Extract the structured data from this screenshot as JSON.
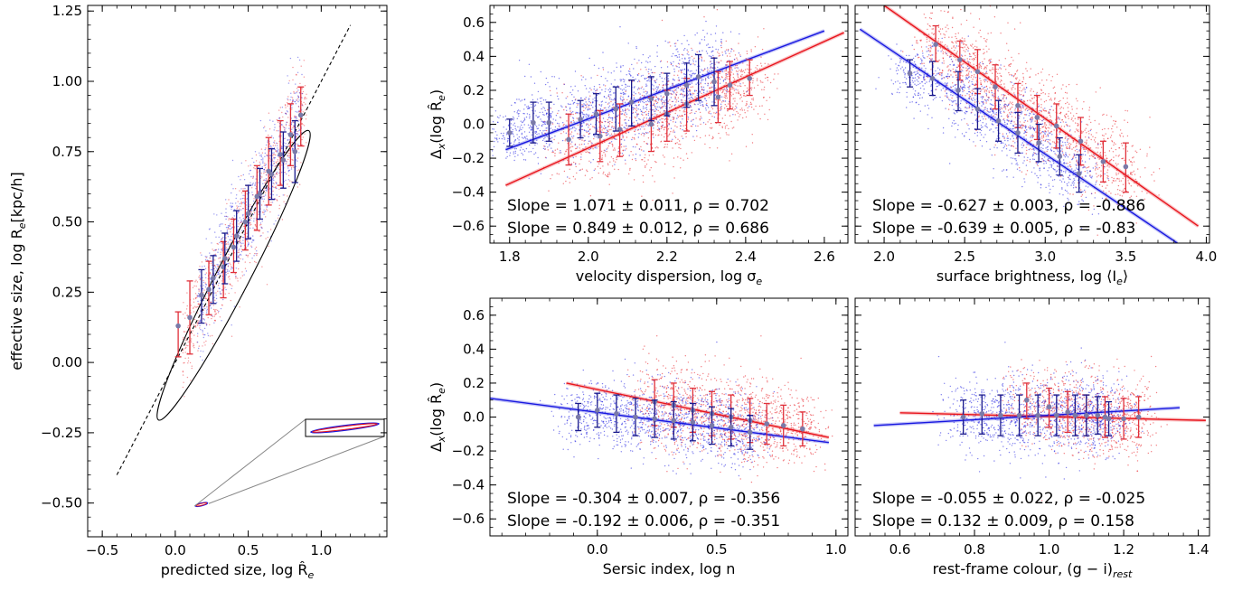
{
  "colors": {
    "red": "#e8141c",
    "blue": "#1818e0",
    "errbar_red": "#e0303a",
    "errbar_blue": "#1a1a8c",
    "marker": "#7a7aa8"
  },
  "chart_data": [
    {
      "id": "p0",
      "type": "scatter",
      "xlabel": "predicted size, log R̂",
      "xlabel_sub": "e",
      "ylabel": "effective size, log R",
      "ylabel_sub": "e",
      "ylabel_tail": "[kpc/h]",
      "xlim": [
        -0.6,
        1.45
      ],
      "ylim": [
        -0.62,
        1.27
      ],
      "xticks": [
        {
          "v": -0.5,
          "l": "−0.5"
        },
        {
          "v": 0,
          "l": "0.0"
        },
        {
          "v": 0.5,
          "l": "0.5"
        },
        {
          "v": 1,
          "l": "1.0"
        }
      ],
      "yticks": [
        {
          "v": -0.5,
          "l": "−0.50"
        },
        {
          "v": -0.25,
          "l": "−0.25"
        },
        {
          "v": 0,
          "l": "0.00"
        },
        {
          "v": 0.25,
          "l": "0.25"
        },
        {
          "v": 0.5,
          "l": "0.50"
        },
        {
          "v": 0.75,
          "l": "0.75"
        },
        {
          "v": 1,
          "l": "1.00"
        },
        {
          "v": 1.25,
          "l": "1.25"
        }
      ],
      "one_to_one": [
        [
          -0.4,
          -0.4
        ],
        [
          1.2,
          1.2
        ]
      ],
      "ellipse": {
        "center": [
          0.4,
          0.31
        ],
        "angle_deg": 38,
        "rx": 1.14,
        "ry": 0.14
      },
      "red_bins": [
        {
          "x": 0.02,
          "y": 0.13,
          "lo": 0.02,
          "hi": 0.18
        },
        {
          "x": 0.1,
          "y": 0.16,
          "lo": 0.03,
          "hi": 0.29
        },
        {
          "x": 0.23,
          "y": 0.26,
          "lo": 0.17,
          "hi": 0.36
        },
        {
          "x": 0.33,
          "y": 0.34,
          "lo": 0.23,
          "hi": 0.43
        },
        {
          "x": 0.4,
          "y": 0.41,
          "lo": 0.32,
          "hi": 0.51
        },
        {
          "x": 0.48,
          "y": 0.5,
          "lo": 0.4,
          "hi": 0.61
        },
        {
          "x": 0.56,
          "y": 0.59,
          "lo": 0.47,
          "hi": 0.7
        },
        {
          "x": 0.64,
          "y": 0.68,
          "lo": 0.56,
          "hi": 0.8
        },
        {
          "x": 0.72,
          "y": 0.74,
          "lo": 0.63,
          "hi": 0.86
        },
        {
          "x": 0.79,
          "y": 0.81,
          "lo": 0.7,
          "hi": 0.92
        },
        {
          "x": 0.86,
          "y": 0.88,
          "lo": 0.77,
          "hi": 0.98
        }
      ],
      "blue_bins": [
        {
          "x": 0.18,
          "y": 0.24,
          "lo": 0.14,
          "hi": 0.33
        },
        {
          "x": 0.26,
          "y": 0.3,
          "lo": 0.21,
          "hi": 0.38
        },
        {
          "x": 0.34,
          "y": 0.37,
          "lo": 0.28,
          "hi": 0.46
        },
        {
          "x": 0.42,
          "y": 0.45,
          "lo": 0.36,
          "hi": 0.54
        },
        {
          "x": 0.5,
          "y": 0.53,
          "lo": 0.44,
          "hi": 0.63
        },
        {
          "x": 0.58,
          "y": 0.6,
          "lo": 0.51,
          "hi": 0.69
        },
        {
          "x": 0.66,
          "y": 0.67,
          "lo": 0.58,
          "hi": 0.76
        },
        {
          "x": 0.74,
          "y": 0.72,
          "lo": 0.62,
          "hi": 0.82
        },
        {
          "x": 0.82,
          "y": 0.75,
          "lo": 0.64,
          "hi": 0.86
        }
      ]
    },
    {
      "id": "p1",
      "type": "scatter",
      "xlabel": "velocity dispersion, log σ",
      "xlabel_sub": "e",
      "ylabel": "Δ",
      "ylabel_sub": "x",
      "ylabel_tail": "(log R̂",
      "ylabel_tail_sub": "e",
      "ylabel_close": ")",
      "xlim": [
        1.75,
        2.66
      ],
      "ylim": [
        -0.7,
        0.7
      ],
      "xticks": [
        {
          "v": 1.8,
          "l": "1.8"
        },
        {
          "v": 2.0,
          "l": "2.0"
        },
        {
          "v": 2.2,
          "l": "2.2"
        },
        {
          "v": 2.4,
          "l": "2.4"
        },
        {
          "v": 2.6,
          "l": "2.6"
        }
      ],
      "yticks": [
        {
          "v": -0.6,
          "l": "−0.6"
        },
        {
          "v": -0.4,
          "l": "−0.4"
        },
        {
          "v": -0.2,
          "l": "−0.2"
        },
        {
          "v": 0,
          "l": "0.0"
        },
        {
          "v": 0.2,
          "l": "0.2"
        },
        {
          "v": 0.4,
          "l": "0.4"
        },
        {
          "v": 0.6,
          "l": "0.6"
        }
      ],
      "red_fit": [
        [
          1.79,
          -0.36
        ],
        [
          2.65,
          0.54
        ]
      ],
      "blue_fit": [
        [
          1.79,
          -0.15
        ],
        [
          2.6,
          0.55
        ]
      ],
      "red_bins": [
        {
          "x": 1.95,
          "y": -0.09,
          "lo": -0.24,
          "hi": 0.06
        },
        {
          "x": 2.03,
          "y": -0.07,
          "lo": -0.22,
          "hi": 0.08
        },
        {
          "x": 2.08,
          "y": -0.03,
          "lo": -0.19,
          "hi": 0.12
        },
        {
          "x": 2.16,
          "y": 0.0,
          "lo": -0.16,
          "hi": 0.16
        },
        {
          "x": 2.2,
          "y": 0.06,
          "lo": -0.1,
          "hi": 0.2
        },
        {
          "x": 2.25,
          "y": 0.12,
          "lo": -0.04,
          "hi": 0.27
        },
        {
          "x": 2.33,
          "y": 0.16,
          "lo": 0.01,
          "hi": 0.31
        },
        {
          "x": 2.36,
          "y": 0.23,
          "lo": 0.09,
          "hi": 0.37
        },
        {
          "x": 2.41,
          "y": 0.27,
          "lo": 0.17,
          "hi": 0.38
        }
      ],
      "blue_bins": [
        {
          "x": 1.8,
          "y": -0.05,
          "lo": -0.13,
          "hi": 0.03
        },
        {
          "x": 1.86,
          "y": 0.01,
          "lo": -0.11,
          "hi": 0.13
        },
        {
          "x": 1.9,
          "y": 0.01,
          "lo": -0.1,
          "hi": 0.13
        },
        {
          "x": 1.98,
          "y": 0.03,
          "lo": -0.08,
          "hi": 0.14
        },
        {
          "x": 2.02,
          "y": 0.06,
          "lo": -0.06,
          "hi": 0.18
        },
        {
          "x": 2.07,
          "y": 0.09,
          "lo": -0.04,
          "hi": 0.22
        },
        {
          "x": 2.11,
          "y": 0.13,
          "lo": -0.01,
          "hi": 0.26
        },
        {
          "x": 2.16,
          "y": 0.15,
          "lo": 0.02,
          "hi": 0.28
        },
        {
          "x": 2.2,
          "y": 0.18,
          "lo": 0.05,
          "hi": 0.3
        },
        {
          "x": 2.25,
          "y": 0.23,
          "lo": 0.1,
          "hi": 0.36
        },
        {
          "x": 2.28,
          "y": 0.28,
          "lo": 0.14,
          "hi": 0.41
        },
        {
          "x": 2.32,
          "y": 0.25,
          "lo": 0.11,
          "hi": 0.39
        }
      ],
      "red_text": "Slope = 1.071 ± 0.011, ρ = 0.702",
      "blue_text": "Slope = 0.849 ± 0.012, ρ = 0.686"
    },
    {
      "id": "p2",
      "type": "scatter",
      "xlabel": "surface brightness, log ⟨I",
      "xlabel_sub": "e",
      "xlabel_close": "⟩",
      "xlim": [
        1.82,
        4.02
      ],
      "ylim": [
        -0.7,
        0.7
      ],
      "xticks": [
        {
          "v": 2.0,
          "l": "2.0"
        },
        {
          "v": 2.5,
          "l": "2.5"
        },
        {
          "v": 3.0,
          "l": "3.0"
        },
        {
          "v": 3.5,
          "l": "3.5"
        },
        {
          "v": 4.0,
          "l": "4.0"
        }
      ],
      "yticks": [
        {
          "v": -0.6,
          "l": ""
        },
        {
          "v": -0.4,
          "l": ""
        },
        {
          "v": -0.2,
          "l": ""
        },
        {
          "v": 0,
          "l": ""
        },
        {
          "v": 0.2,
          "l": ""
        },
        {
          "v": 0.4,
          "l": ""
        },
        {
          "v": 0.6,
          "l": ""
        }
      ],
      "red_fit": [
        [
          2.0,
          0.7
        ],
        [
          3.95,
          -0.6
        ]
      ],
      "blue_fit": [
        [
          1.85,
          0.56
        ],
        [
          3.82,
          -0.7
        ]
      ],
      "red_bins": [
        {
          "x": 2.32,
          "y": 0.47,
          "lo": 0.37,
          "hi": 0.58
        },
        {
          "x": 2.47,
          "y": 0.38,
          "lo": 0.26,
          "hi": 0.49
        },
        {
          "x": 2.58,
          "y": 0.31,
          "lo": 0.18,
          "hi": 0.44
        },
        {
          "x": 2.69,
          "y": 0.22,
          "lo": 0.09,
          "hi": 0.35
        },
        {
          "x": 2.83,
          "y": 0.11,
          "lo": -0.02,
          "hi": 0.24
        },
        {
          "x": 2.95,
          "y": 0.04,
          "lo": -0.09,
          "hi": 0.17
        },
        {
          "x": 3.07,
          "y": -0.01,
          "lo": -0.14,
          "hi": 0.12
        },
        {
          "x": 3.22,
          "y": -0.1,
          "lo": -0.24,
          "hi": 0.04
        },
        {
          "x": 3.36,
          "y": -0.22,
          "lo": -0.34,
          "hi": -0.1
        },
        {
          "x": 3.5,
          "y": -0.25,
          "lo": -0.4,
          "hi": -0.11
        }
      ],
      "blue_bins": [
        {
          "x": 2.16,
          "y": 0.3,
          "lo": 0.22,
          "hi": 0.38
        },
        {
          "x": 2.3,
          "y": 0.27,
          "lo": 0.17,
          "hi": 0.37
        },
        {
          "x": 2.46,
          "y": 0.2,
          "lo": 0.08,
          "hi": 0.31
        },
        {
          "x": 2.58,
          "y": 0.09,
          "lo": -0.03,
          "hi": 0.21
        },
        {
          "x": 2.71,
          "y": 0.02,
          "lo": -0.1,
          "hi": 0.14
        },
        {
          "x": 2.83,
          "y": -0.05,
          "lo": -0.17,
          "hi": 0.07
        },
        {
          "x": 2.96,
          "y": -0.11,
          "lo": -0.22,
          "hi": 0.0
        },
        {
          "x": 3.09,
          "y": -0.19,
          "lo": -0.3,
          "hi": -0.08
        },
        {
          "x": 3.21,
          "y": -0.29,
          "lo": -0.4,
          "hi": -0.18
        }
      ],
      "red_text": "Slope = -0.627 ± 0.003, ρ = -0.886",
      "blue_text": "Slope = -0.639 ± 0.005, ρ = -0.83"
    },
    {
      "id": "p3",
      "type": "scatter",
      "xlabel": "Sersic index, log n",
      "ylabel": "Δ",
      "ylabel_sub": "x",
      "ylabel_tail": "(log R̂",
      "ylabel_tail_sub": "e",
      "ylabel_close": ")",
      "xlim": [
        -0.45,
        1.05
      ],
      "ylim": [
        -0.7,
        0.7
      ],
      "xticks": [
        {
          "v": 0,
          "l": "0.0"
        },
        {
          "v": 0.5,
          "l": "0.5"
        },
        {
          "v": 1.0,
          "l": "1.0"
        }
      ],
      "yticks": [
        {
          "v": -0.6,
          "l": "−0.6"
        },
        {
          "v": -0.4,
          "l": "−0.4"
        },
        {
          "v": -0.2,
          "l": "−0.2"
        },
        {
          "v": 0,
          "l": "0.0"
        },
        {
          "v": 0.2,
          "l": "0.2"
        },
        {
          "v": 0.4,
          "l": "0.4"
        },
        {
          "v": 0.6,
          "l": "0.6"
        }
      ],
      "red_fit": [
        [
          -0.13,
          0.2
        ],
        [
          0.97,
          -0.12
        ]
      ],
      "blue_fit": [
        [
          -0.45,
          0.11
        ],
        [
          0.97,
          -0.15
        ]
      ],
      "red_bins": [
        {
          "x": 0.24,
          "y": 0.09,
          "lo": -0.05,
          "hi": 0.22
        },
        {
          "x": 0.32,
          "y": 0.07,
          "lo": -0.06,
          "hi": 0.2
        },
        {
          "x": 0.4,
          "y": 0.04,
          "lo": -0.09,
          "hi": 0.17
        },
        {
          "x": 0.48,
          "y": 0.02,
          "lo": -0.11,
          "hi": 0.15
        },
        {
          "x": 0.56,
          "y": 0.0,
          "lo": -0.13,
          "hi": 0.13
        },
        {
          "x": 0.64,
          "y": -0.02,
          "lo": -0.15,
          "hi": 0.11
        },
        {
          "x": 0.71,
          "y": -0.04,
          "lo": -0.16,
          "hi": 0.08
        },
        {
          "x": 0.78,
          "y": -0.05,
          "lo": -0.17,
          "hi": 0.07
        },
        {
          "x": 0.86,
          "y": -0.07,
          "lo": -0.17,
          "hi": 0.03
        }
      ],
      "blue_bins": [
        {
          "x": -0.08,
          "y": 0.0,
          "lo": -0.08,
          "hi": 0.08
        },
        {
          "x": 0.0,
          "y": 0.04,
          "lo": -0.06,
          "hi": 0.14
        },
        {
          "x": 0.08,
          "y": 0.02,
          "lo": -0.09,
          "hi": 0.13
        },
        {
          "x": 0.16,
          "y": 0.0,
          "lo": -0.11,
          "hi": 0.11
        },
        {
          "x": 0.24,
          "y": -0.01,
          "lo": -0.12,
          "hi": 0.1
        },
        {
          "x": 0.32,
          "y": -0.02,
          "lo": -0.13,
          "hi": 0.09
        },
        {
          "x": 0.4,
          "y": -0.03,
          "lo": -0.14,
          "hi": 0.08
        },
        {
          "x": 0.48,
          "y": -0.05,
          "lo": -0.16,
          "hi": 0.06
        },
        {
          "x": 0.56,
          "y": -0.06,
          "lo": -0.17,
          "hi": 0.05
        },
        {
          "x": 0.64,
          "y": -0.09,
          "lo": -0.19,
          "hi": 0.01
        }
      ],
      "red_text": "Slope = -0.304 ± 0.007, ρ = -0.356",
      "blue_text": "Slope = -0.192 ± 0.006, ρ = -0.351"
    },
    {
      "id": "p4",
      "type": "scatter",
      "xlabel": "rest-frame colour, (g − i)",
      "xlabel_sub": "rest",
      "xlim": [
        0.48,
        1.43
      ],
      "ylim": [
        -0.7,
        0.7
      ],
      "xticks": [
        {
          "v": 0.6,
          "l": "0.6"
        },
        {
          "v": 0.8,
          "l": "0.8"
        },
        {
          "v": 1.0,
          "l": "1.0"
        },
        {
          "v": 1.2,
          "l": "1.2"
        },
        {
          "v": 1.4,
          "l": "1.4"
        }
      ],
      "yticks": [
        {
          "v": -0.6,
          "l": ""
        },
        {
          "v": -0.4,
          "l": ""
        },
        {
          "v": -0.2,
          "l": ""
        },
        {
          "v": 0,
          "l": ""
        },
        {
          "v": 0.2,
          "l": ""
        },
        {
          "v": 0.4,
          "l": ""
        },
        {
          "v": 0.6,
          "l": ""
        }
      ],
      "red_fit": [
        [
          0.6,
          0.025
        ],
        [
          1.42,
          -0.02
        ]
      ],
      "blue_fit": [
        [
          0.53,
          -0.05
        ],
        [
          1.35,
          0.055
        ]
      ],
      "red_bins": [
        {
          "x": 0.94,
          "y": 0.1,
          "lo": -0.01,
          "hi": 0.2
        },
        {
          "x": 1.0,
          "y": 0.06,
          "lo": -0.06,
          "hi": 0.17
        },
        {
          "x": 1.05,
          "y": 0.03,
          "lo": -0.09,
          "hi": 0.15
        },
        {
          "x": 1.1,
          "y": 0.01,
          "lo": -0.11,
          "hi": 0.13
        },
        {
          "x": 1.15,
          "y": 0.0,
          "lo": -0.12,
          "hi": 0.12
        },
        {
          "x": 1.2,
          "y": -0.01,
          "lo": -0.13,
          "hi": 0.11
        },
        {
          "x": 1.24,
          "y": 0.0,
          "lo": -0.12,
          "hi": 0.12
        }
      ],
      "blue_bins": [
        {
          "x": 0.77,
          "y": 0.0,
          "lo": -0.1,
          "hi": 0.1
        },
        {
          "x": 0.82,
          "y": 0.02,
          "lo": -0.1,
          "hi": 0.13
        },
        {
          "x": 0.87,
          "y": 0.01,
          "lo": -0.11,
          "hi": 0.13
        },
        {
          "x": 0.92,
          "y": 0.01,
          "lo": -0.11,
          "hi": 0.13
        },
        {
          "x": 0.97,
          "y": 0.01,
          "lo": -0.11,
          "hi": 0.13
        },
        {
          "x": 1.02,
          "y": 0.01,
          "lo": -0.11,
          "hi": 0.13
        },
        {
          "x": 1.07,
          "y": 0.01,
          "lo": -0.11,
          "hi": 0.13
        },
        {
          "x": 1.1,
          "y": 0.01,
          "lo": -0.11,
          "hi": 0.13
        },
        {
          "x": 1.13,
          "y": 0.01,
          "lo": -0.1,
          "hi": 0.12
        },
        {
          "x": 1.16,
          "y": -0.01,
          "lo": -0.11,
          "hi": 0.09
        }
      ],
      "red_text": "Slope = -0.055 ± 0.022, ρ = -0.025",
      "blue_text": "Slope = 0.132 ± 0.009, ρ = 0.158"
    }
  ]
}
